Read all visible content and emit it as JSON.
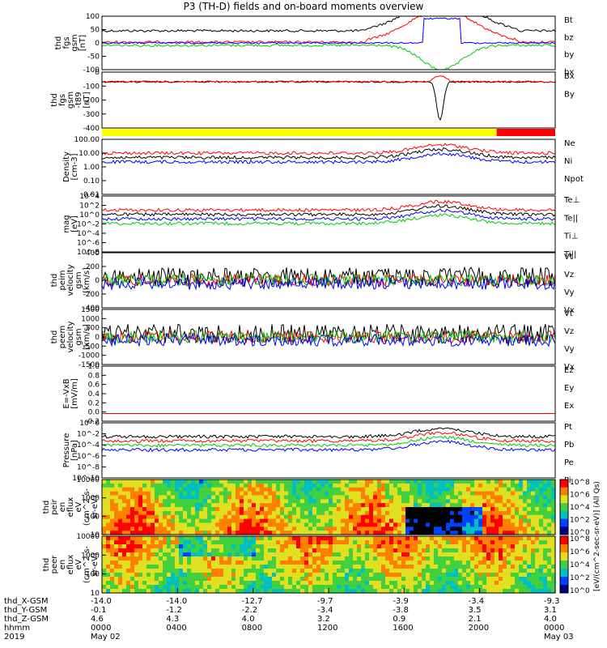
{
  "title": "P3 (TH-D) fields and on-board moments overview",
  "footer": {
    "row_labels": [
      "thd_X-GSM",
      "thd_Y-GSM",
      "thd_Z-GSM",
      "hhmm",
      "2019"
    ],
    "columns": [
      {
        "x": "-14.0",
        "y": "-0.1",
        "z": "4.6",
        "hhmm": "0000",
        "date": "May 02"
      },
      {
        "x": "-14.0",
        "y": "-1.2",
        "z": "4.3",
        "hhmm": "0400",
        "date": ""
      },
      {
        "x": "-12.7",
        "y": "-2.2",
        "z": "4.0",
        "hhmm": "0800",
        "date": ""
      },
      {
        "x": "-9.7",
        "y": "-3.4",
        "z": "3.2",
        "hhmm": "1200",
        "date": ""
      },
      {
        "x": "-3.9",
        "y": "-3.8",
        "z": "0.9",
        "hhmm": "1600",
        "date": ""
      },
      {
        "x": "-3.4",
        "y": "3.5",
        "z": "2.1",
        "hhmm": "2000",
        "date": ""
      },
      {
        "x": "-9.3",
        "y": "3.1",
        "z": "4.0",
        "hhmm": "0000",
        "date": "May 03"
      }
    ]
  },
  "colorbar_label": "[eV/(cm^2-sec-sr-eV)] (All Qs)",
  "colorbar_ticks": [
    "10^8",
    "10^6",
    "10^4",
    "10^2",
    "10^0"
  ],
  "chart_data": [
    {
      "type": "line",
      "ylabel": [
        "thd",
        "fgs",
        "gsm",
        "[nT]"
      ],
      "ylim": [
        -100,
        100
      ],
      "ticks": [
        "100",
        "50",
        "0",
        "-50",
        "-100"
      ],
      "series": [
        {
          "name": "Bt",
          "color": "#000000"
        },
        {
          "name": "bz",
          "color": "#ff0000"
        },
        {
          "name": "by",
          "color": "#00cc00"
        },
        {
          "name": "bx",
          "color": "#0000ff"
        }
      ]
    },
    {
      "type": "line",
      "ylabel": [
        "thd",
        "fgs",
        "gsm",
        "-t89",
        "[nT]"
      ],
      "ylim": [
        -450,
        20
      ],
      "ticks": [
        "0",
        "-100",
        "-200",
        "-300",
        "-400"
      ],
      "series": [
        {
          "name": "Bx",
          "color": "#000000"
        },
        {
          "name": "By",
          "color": "#ff0000"
        }
      ]
    },
    {
      "type": "area",
      "status_bar": true,
      "segments": [
        {
          "from_hour": 0,
          "to_hour": 20.9,
          "color": "#ffff00"
        },
        {
          "from_hour": 20.9,
          "to_hour": 24,
          "color": "#ff0000"
        }
      ]
    },
    {
      "type": "line",
      "ylabel": [
        "Density",
        "[cm-3]"
      ],
      "log": true,
      "ylim": [
        0.01,
        300
      ],
      "ticks": [
        "100.00",
        "10.00",
        "1.00",
        "0.10",
        "0.01"
      ],
      "series": [
        {
          "name": "Ne",
          "color": "#ff0000"
        },
        {
          "name": "Ni",
          "color": "#000000"
        },
        {
          "name": "Npot",
          "color": "#0000ff"
        }
      ]
    },
    {
      "type": "line",
      "ylabel": [
        "mag",
        "[eV]"
      ],
      "log": true,
      "ylim": [
        1e-08,
        10000.0
      ],
      "ticks": [
        "10^4",
        "10^2",
        "10^0",
        "10^-2",
        "10^-4",
        "10^-6",
        "10^-8"
      ],
      "series": [
        {
          "name": "Te⊥",
          "color": "#ff0000"
        },
        {
          "name": "Te||",
          "color": "#000000"
        },
        {
          "name": "Ti⊥",
          "color": "#0000ff"
        },
        {
          "name": "Ti||",
          "color": "#00cc00"
        }
      ]
    },
    {
      "type": "line",
      "ylabel": [
        "thd",
        "peim",
        "velocity",
        "gsm",
        "[km/s]"
      ],
      "ylim": [
        -400,
        400
      ],
      "ticks": [
        "400",
        "200",
        "0",
        "-200",
        "-400"
      ],
      "series": [
        {
          "name": "Vt",
          "color": "#000000"
        },
        {
          "name": "Vz",
          "color": "#ff0000"
        },
        {
          "name": "Vy",
          "color": "#00cc00"
        },
        {
          "name": "Vx",
          "color": "#0000ff"
        }
      ]
    },
    {
      "type": "line",
      "ylabel": [
        "thd",
        "peem",
        "velocity",
        "gsm",
        "[km/s]"
      ],
      "ylim": [
        -1500,
        1500
      ],
      "ticks": [
        "1500",
        "1000",
        "500",
        "0",
        "-500",
        "-1000",
        "-1500"
      ],
      "series": [
        {
          "name": "Vt",
          "color": "#000000"
        },
        {
          "name": "Vz",
          "color": "#ff0000"
        },
        {
          "name": "Vy",
          "color": "#00cc00"
        },
        {
          "name": "Vx",
          "color": "#0000ff"
        }
      ]
    },
    {
      "type": "line",
      "ylabel": [
        "E=-VxB",
        "[mV/m]"
      ],
      "ylim": [
        -0.2,
        1.0
      ],
      "ticks": [
        "1.0",
        "0.8",
        "0.6",
        "0.4",
        "0.2",
        "0.0",
        "-0.2"
      ],
      "series": [
        {
          "name": "Ez",
          "color": "#ff0000"
        },
        {
          "name": "Ey",
          "color": "#00cc00"
        },
        {
          "name": "Ex",
          "color": "#0000ff"
        }
      ]
    },
    {
      "type": "line",
      "ylabel": [
        "Pressure",
        "[nPa]"
      ],
      "log": true,
      "ylim": [
        1e-10,
        1
      ],
      "ticks": [
        "10^0",
        "10^-2",
        "10^-4",
        "10^-6",
        "10^-8",
        "10^-10"
      ],
      "series": [
        {
          "name": "Pt",
          "color": "#000000"
        },
        {
          "name": "Pb",
          "color": "#ff0000"
        },
        {
          "name": "Pe",
          "color": "#00cc00"
        },
        {
          "name": "Pi",
          "color": "#0000ff"
        }
      ]
    },
    {
      "type": "heatmap",
      "ylabel": [
        "thd",
        "peir",
        "en",
        "eflux",
        "eV",
        "(cm^2-s-",
        "sr-eV)"
      ],
      "log": true,
      "ylim": [
        5,
        30000
      ],
      "ticks": [
        "10000",
        "1000",
        "100",
        "10"
      ]
    },
    {
      "type": "heatmap",
      "ylabel": [
        "thd",
        "peer",
        "en",
        "eflux",
        "eV",
        "(cm^2-s-",
        "sr-eV)"
      ],
      "log": true,
      "ylim": [
        5,
        30000
      ],
      "ticks": [
        "10000",
        "1000",
        "100",
        "10"
      ]
    }
  ]
}
